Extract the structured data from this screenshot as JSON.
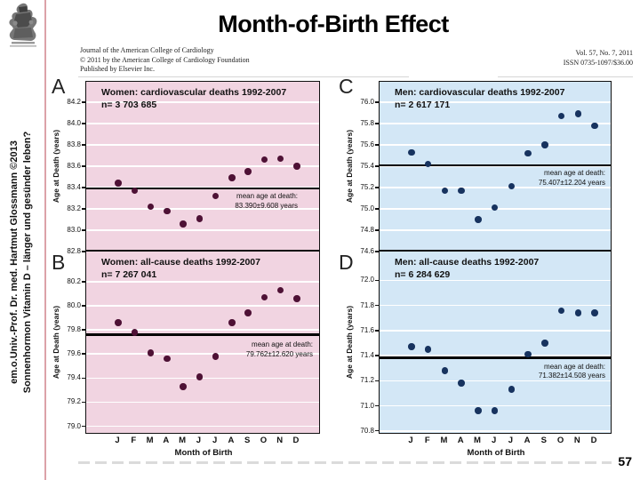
{
  "slide": {
    "title": "Month-of-Birth Effect",
    "page_number": "57"
  },
  "sidebar": {
    "line1": "em.o.Univ.-Prof. Dr. med. Hartmut Glossmann ©2013",
    "line2": "Sonnenhormon Vitamin D – länger und gesünder leben?"
  },
  "journal_header": {
    "left_line1": "Journal of the American College of Cardiology",
    "left_line2": "© 2011 by the American College of Cardiology Foundation",
    "left_line3": "Published by Elsevier Inc.",
    "right_line1": "Vol. 57, No. 7, 2011",
    "right_line2": "ISSN 0735-1097/$36.00"
  },
  "figure": {
    "months": [
      "J",
      "F",
      "M",
      "A",
      "M",
      "J",
      "J",
      "A",
      "S",
      "O",
      "N",
      "D"
    ],
    "x_axis_label": "Month of Birth",
    "y_axis_label": "Age at Death (years)",
    "colors": {
      "women_bg": "#f1d4e1",
      "women_dot": "#4e1135",
      "men_bg": "#d3e7f6",
      "men_dot": "#17335f",
      "gridline": "#ffffff",
      "mean_line": "#000000"
    }
  },
  "chart_data": [
    {
      "id": "A",
      "type": "scatter",
      "group": "women",
      "title": "Women: cardiovascular deaths 1992-2007",
      "n_label": "n= 3 703 685",
      "mean_label_line1": "mean age at death:",
      "mean_label_line2": "83.390±9.608 years",
      "mean": 83.39,
      "ylim": [
        82.8,
        84.39
      ],
      "yticks": [
        "84.2",
        "84.0",
        "83.8",
        "83.6",
        "83.4",
        "83.2",
        "83.0",
        "82.8"
      ],
      "x": [
        "J",
        "F",
        "M",
        "A",
        "M",
        "J",
        "J",
        "A",
        "S",
        "O",
        "N",
        "D"
      ],
      "values": [
        83.44,
        83.37,
        83.22,
        83.18,
        83.06,
        83.11,
        83.32,
        83.49,
        83.55,
        83.66,
        83.67,
        83.6
      ]
    },
    {
      "id": "B",
      "type": "scatter",
      "group": "women",
      "title": "Women: all-cause deaths 1992-2007",
      "n_label": "n= 7 267 041",
      "mean_label_line1": "mean age at death:",
      "mean_label_line2": "79.762±12.620 years",
      "mean": 79.762,
      "ylim": [
        78.93,
        80.45
      ],
      "yticks": [
        "80.2",
        "80.0",
        "79.8",
        "79.6",
        "79.4",
        "79.2",
        "79.0"
      ],
      "x": [
        "J",
        "F",
        "M",
        "A",
        "M",
        "J",
        "J",
        "A",
        "S",
        "O",
        "N",
        "D"
      ],
      "values": [
        79.86,
        79.78,
        79.61,
        79.56,
        79.33,
        79.41,
        79.58,
        79.86,
        79.94,
        80.07,
        80.13,
        80.06
      ]
    },
    {
      "id": "C",
      "type": "scatter",
      "group": "men",
      "title": "Men: cardiovascular deaths 1992-2007",
      "n_label": "n= 2 617 171",
      "mean_label_line1": "mean age at death:",
      "mean_label_line2": "75.407±12.204 years",
      "mean": 75.407,
      "ylim": [
        74.6,
        76.19
      ],
      "yticks": [
        "76.0",
        "75.8",
        "75.6",
        "75.4",
        "75.2",
        "75.0",
        "74.8",
        "74.6"
      ],
      "x": [
        "J",
        "F",
        "M",
        "A",
        "M",
        "J",
        "J",
        "A",
        "S",
        "O",
        "N",
        "D"
      ],
      "values": [
        75.53,
        75.42,
        75.17,
        75.17,
        74.9,
        75.01,
        75.21,
        75.52,
        75.6,
        75.87,
        75.89,
        75.78
      ]
    },
    {
      "id": "D",
      "type": "scatter",
      "group": "men",
      "title": "Men: all-cause deaths 1992-2007",
      "n_label": "n= 6 284 629",
      "mean_label_line1": "mean age at death:",
      "mean_label_line2": "71.382±14.508 years",
      "mean": 71.382,
      "ylim": [
        70.77,
        72.23
      ],
      "yticks": [
        "72.0",
        "71.8",
        "71.6",
        "71.4",
        "71.2",
        "71.0",
        "70.8"
      ],
      "x": [
        "J",
        "F",
        "M",
        "A",
        "M",
        "J",
        "J",
        "A",
        "S",
        "O",
        "N",
        "D"
      ],
      "values": [
        71.47,
        71.45,
        71.28,
        71.18,
        70.96,
        70.96,
        71.13,
        71.41,
        71.5,
        71.76,
        71.74,
        71.74
      ]
    }
  ]
}
